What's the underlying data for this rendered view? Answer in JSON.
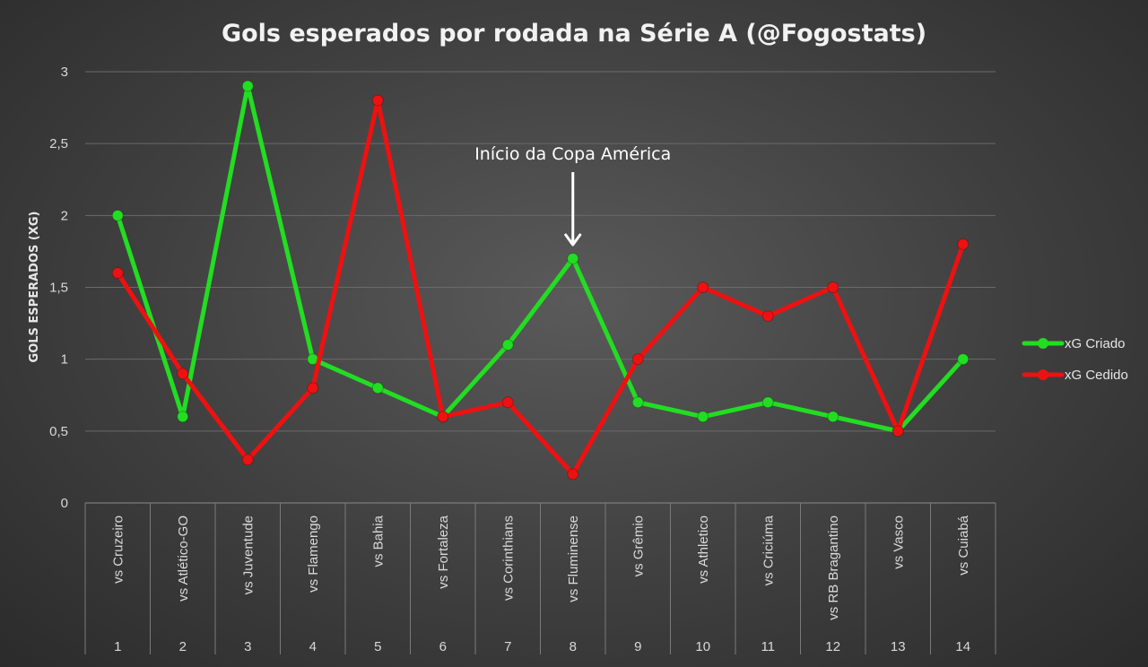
{
  "chart_data": {
    "type": "line",
    "title": "Gols esperados por rodada na Série A (@Fogostats)",
    "ylabel": "GOLS ESPERADOS (XG)",
    "ylim": [
      0,
      3
    ],
    "yticks": [
      0,
      0.5,
      1,
      1.5,
      2,
      2.5,
      3
    ],
    "ytick_labels": [
      "0",
      "0,5",
      "1",
      "1,5",
      "2",
      "2,5",
      "3"
    ],
    "grid": true,
    "legend_position": "right",
    "rounds": [
      "1",
      "2",
      "3",
      "4",
      "5",
      "6",
      "7",
      "8",
      "9",
      "10",
      "11",
      "12",
      "13",
      "14"
    ],
    "categories": [
      "vs Cruzeiro",
      "vs Atlético-GO",
      "vs Juventude",
      "vs Flamengo",
      "vs Bahia",
      "vs Fortaleza",
      "vs Corinthians",
      "vs Fluminense",
      "vs Grêmio",
      "vs Athletico",
      "vs Criciúma",
      "vs RB Bragantino",
      "vs Vasco",
      "vs Cuiabá"
    ],
    "series": [
      {
        "name": "xG Criado",
        "color": "#22dd22",
        "values": [
          2.0,
          0.6,
          2.9,
          1.0,
          0.8,
          0.6,
          1.1,
          1.7,
          0.7,
          0.6,
          0.7,
          0.6,
          0.5,
          1.0
        ]
      },
      {
        "name": "xG Cedido",
        "color": "#ee1111",
        "values": [
          1.6,
          0.9,
          0.3,
          0.8,
          2.8,
          0.6,
          0.7,
          0.2,
          1.0,
          1.5,
          1.3,
          1.5,
          0.5,
          1.8
        ]
      }
    ],
    "annotations": [
      {
        "text": "Início da Copa América",
        "category_index": 7,
        "arrow": "down"
      }
    ]
  }
}
